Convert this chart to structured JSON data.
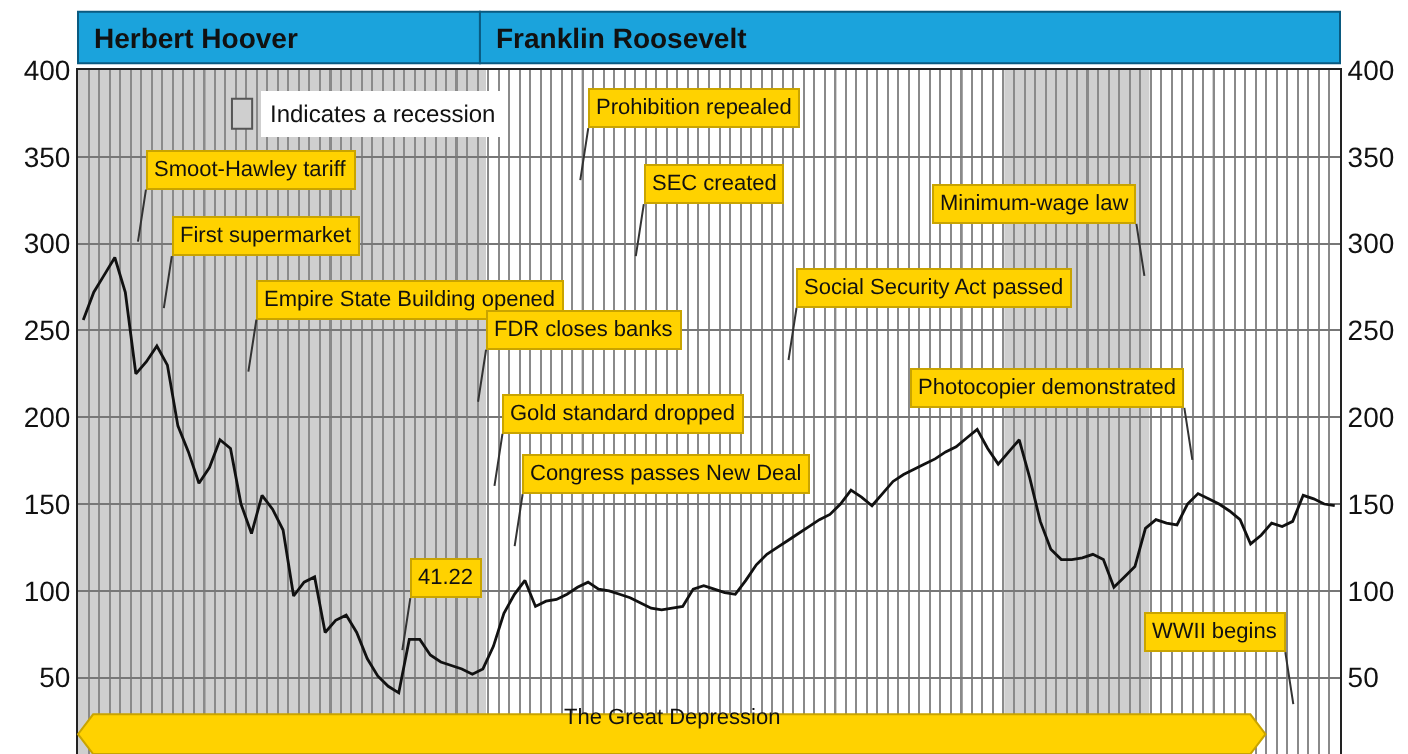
{
  "chart_data": {
    "type": "line",
    "categories": [
      null,
      null,
      null,
      null,
      null,
      null,
      null,
      null,
      null,
      null,
      null,
      null,
      null,
      null,
      null,
      null,
      null,
      null,
      null,
      null,
      null,
      null,
      null,
      null,
      null,
      null,
      null,
      null,
      null,
      null,
      null,
      null,
      null,
      null,
      null,
      null,
      null,
      null,
      null,
      null,
      null,
      null,
      null,
      null,
      null,
      null,
      null,
      null,
      null,
      null,
      null,
      null,
      null,
      null,
      null,
      null,
      null,
      null,
      null,
      null,
      null,
      null,
      null,
      null,
      null,
      null,
      null,
      null,
      null,
      null,
      null,
      null,
      null,
      null,
      null,
      null,
      null,
      null,
      null,
      null,
      null,
      null,
      null,
      null,
      null,
      null,
      null,
      null,
      null,
      null,
      null,
      null,
      null,
      null,
      null,
      null,
      null,
      null,
      null,
      null,
      null,
      null,
      null,
      null,
      null,
      null,
      null,
      null,
      null,
      null,
      null,
      null,
      null,
      null,
      null,
      null,
      null,
      null,
      null,
      null
    ],
    "series": [
      {
        "color": "#111111",
        "values": [
          256,
          272,
          282,
          292,
          272,
          225,
          232,
          241,
          230,
          195,
          180,
          162,
          171,
          187,
          182,
          150,
          133,
          155,
          147,
          135,
          97,
          105,
          108,
          76,
          83,
          86,
          76,
          61,
          51,
          45,
          41.22,
          72,
          72,
          63,
          59,
          57,
          55,
          52,
          55,
          68,
          87,
          98,
          106,
          91,
          94,
          95,
          98,
          102,
          105,
          101,
          100,
          98,
          96,
          93,
          90,
          89,
          90,
          91,
          101,
          103,
          101,
          99,
          98,
          106,
          115,
          121,
          125,
          129,
          133,
          137,
          141,
          144,
          150,
          158,
          154,
          149,
          156,
          163,
          167,
          170,
          173,
          176,
          180,
          183,
          188,
          193,
          182,
          173,
          180,
          187,
          165,
          140,
          124,
          118,
          118,
          119,
          121,
          118,
          102,
          108,
          114,
          136,
          141,
          139,
          138,
          150,
          156,
          153,
          150,
          146,
          141,
          127,
          132,
          139,
          137,
          140,
          155,
          153,
          150,
          149
        ]
      }
    ],
    "ylim": [
      6,
      400
    ],
    "yticks": [
      50,
      100,
      150,
      200,
      250,
      300,
      350,
      400
    ],
    "y2lim": [
      6,
      400
    ],
    "y2ticks": [
      50,
      100,
      150,
      200,
      250,
      300,
      350,
      400
    ],
    "tick_labels": "y",
    "grid": true,
    "line_style": "solid",
    "annotations": [
      "Indicates a recession",
      "Herbert Hoover",
      "Franklin Roosevelt",
      "Smoot-Hawley tariff",
      "First supermarket",
      "Empire State Building opened",
      "FDR closes banks",
      "Gold standard dropped",
      "Congress passes New Deal",
      "Prohibition repealed",
      "SEC created",
      "Social Security Act passed",
      "Minimum-wage law",
      "Photocopier demonstrated",
      "41.22",
      "WWII begins",
      "The Great Depression"
    ]
  }
}
